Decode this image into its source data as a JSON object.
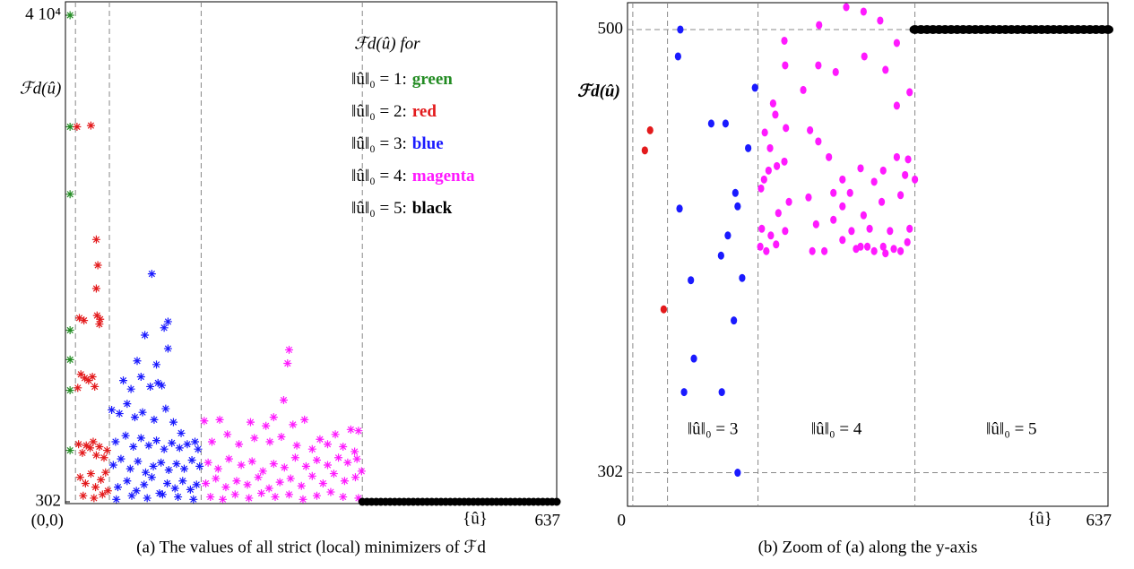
{
  "chart_data": [
    {
      "type": "scatter",
      "caption": "(a) The values of all strict (local) minimizers of ℱd",
      "ylabel": "ℱd(û)",
      "xlabel": "{û}",
      "xlim": [
        0,
        637
      ],
      "ylim": [
        302,
        40000
      ],
      "xticks": [
        {
          "value": 0,
          "label": "(0,0)"
        },
        637
      ],
      "yticks": [
        302,
        {
          "value": 40000,
          "label": "4 10⁴"
        }
      ],
      "grid": false,
      "vlines": [
        13,
        57,
        176,
        385
      ],
      "legend_title": "ℱd(û) for",
      "legend": "upper right",
      "series": [
        {
          "name": "green",
          "label": "‖û‖₀ = 1:",
          "color": "#228b22",
          "marker": "star",
          "x": [
            6,
            6,
            6,
            6,
            6,
            6,
            6
          ],
          "values": [
            40000,
            30900,
            25400,
            14300,
            11900,
            9400,
            4500
          ]
        },
        {
          "name": "red",
          "label": "‖û‖₀ = 2:",
          "color": "#e31a1c",
          "marker": "star",
          "x": [
            15,
            33,
            40,
            42,
            40,
            41,
            18,
            24,
            44,
            45,
            16,
            20,
            25,
            30,
            35,
            38,
            17,
            22,
            27,
            32,
            36,
            40,
            44,
            50,
            54,
            19,
            26,
            33,
            39,
            46,
            52,
            23,
            37,
            48,
            55
          ],
          "values": [
            30900,
            31000,
            21700,
            19600,
            17700,
            15500,
            15300,
            15100,
            14800,
            15200,
            9600,
            10700,
            10400,
            10200,
            10500,
            9700,
            5000,
            4300,
            4900,
            4700,
            5200,
            4100,
            4800,
            3900,
            4500,
            2300,
            1800,
            2600,
            1500,
            2100,
            2700,
            800,
            600,
            900,
            1200
          ]
        },
        {
          "name": "blue",
          "label": "‖û‖₀ = 3:",
          "color": "#1a1aff",
          "marker": "star",
          "x": [
            112,
            133,
            128,
            103,
            133,
            118,
            93,
            120,
            75,
            85,
            98,
            110,
            125,
            60,
            70,
            80,
            90,
            100,
            115,
            130,
            140,
            150,
            65,
            78,
            88,
            98,
            108,
            118,
            128,
            138,
            148,
            158,
            168,
            172,
            62,
            72,
            84,
            94,
            104,
            114,
            124,
            134,
            144,
            154,
            164,
            174,
            68,
            80,
            92,
            102,
            112,
            122,
            132,
            142,
            152,
            162,
            170,
            66,
            86,
            106,
            126,
            146,
            166
          ],
          "values": [
            18900,
            15000,
            14500,
            13900,
            12800,
            11500,
            11800,
            10000,
            10200,
            9500,
            10500,
            9700,
            9800,
            7800,
            7500,
            8300,
            7200,
            7600,
            7000,
            7900,
            6800,
            5900,
            5200,
            5700,
            4800,
            5500,
            4900,
            5300,
            4600,
            5100,
            4700,
            5000,
            5200,
            4600,
            3300,
            3800,
            3000,
            3600,
            2700,
            3200,
            3500,
            2900,
            3400,
            3000,
            3700,
            3200,
            1500,
            2000,
            1200,
            1700,
            2300,
            1000,
            1800,
            1400,
            2000,
            1300,
            1700,
            500,
            800,
            600,
            900,
            700,
            500
          ]
        },
        {
          "name": "magenta",
          "label": "‖û‖₀ = 4:",
          "color": "#ff1aff",
          "marker": "star",
          "x": [
            290,
            288,
            283,
            270,
            295,
            180,
            200,
            240,
            260,
            310,
            330,
            350,
            370,
            380,
            190,
            210,
            225,
            245,
            265,
            280,
            300,
            320,
            340,
            360,
            375,
            185,
            198,
            212,
            228,
            242,
            256,
            270,
            284,
            298,
            312,
            326,
            340,
            354,
            366,
            378,
            182,
            195,
            208,
            222,
            236,
            250,
            264,
            278,
            292,
            306,
            320,
            334,
            348,
            362,
            376,
            384,
            188,
            204,
            220,
            238,
            254,
            272,
            290,
            308,
            326,
            344,
            360,
            380
          ],
          "values": [
            12700,
            11600,
            8600,
            7200,
            6600,
            6900,
            7000,
            6800,
            6500,
            7000,
            5400,
            5800,
            6200,
            6100,
            5200,
            5800,
            5000,
            5500,
            5200,
            5600,
            4900,
            4600,
            5000,
            4800,
            4400,
            3500,
            3000,
            3800,
            3300,
            3600,
            2800,
            3400,
            3100,
            3900,
            3200,
            3700,
            3300,
            3900,
            3500,
            3800,
            1800,
            2200,
            1500,
            2000,
            1700,
            2300,
            1400,
            1900,
            2200,
            1600,
            2400,
            1800,
            2600,
            2000,
            2300,
            2800,
            700,
            500,
            900,
            600,
            1000,
            700,
            900,
            500,
            800,
            1100,
            700,
            600
          ]
        },
        {
          "name": "black",
          "label": "‖û‖₀ = 5:",
          "color": "#000000",
          "marker": "dot",
          "x": [
            385,
            391,
            397,
            403,
            409,
            415,
            421,
            427,
            433,
            439,
            445,
            451,
            457,
            463,
            469,
            475,
            481,
            487,
            493,
            499,
            505,
            511,
            517,
            523,
            529,
            535,
            541,
            547,
            553,
            559,
            565,
            571,
            577,
            583,
            589,
            595,
            601,
            607,
            613,
            619,
            625,
            631,
            637
          ],
          "values": [
            302,
            302,
            302,
            302,
            302,
            302,
            302,
            302,
            302,
            302,
            302,
            302,
            302,
            302,
            302,
            302,
            302,
            302,
            302,
            302,
            302,
            302,
            302,
            302,
            302,
            302,
            302,
            302,
            302,
            302,
            302,
            302,
            302,
            302,
            302,
            302,
            302,
            302,
            302,
            302,
            302,
            302,
            302
          ]
        }
      ]
    },
    {
      "type": "scatter",
      "caption": "(b) Zoom of (a) along the y-axis",
      "ylabel": "ℱd(û)",
      "xlabel": "{û}",
      "xlim": [
        0,
        637
      ],
      "ylim": [
        287,
        512
      ],
      "xticks": [
        0,
        637
      ],
      "yticks": [
        302,
        500
      ],
      "grid": true,
      "vlines": [
        7,
        53,
        173,
        381
      ],
      "annotations": [
        "‖û‖₀ = 3",
        "‖û‖₀ = 4",
        "‖û‖₀ = 5"
      ],
      "series": [
        {
          "color": "#e31a1c",
          "marker": "dot",
          "x": [
            23,
            30,
            48
          ],
          "values": [
            446,
            455,
            375
          ]
        },
        {
          "color": "#1a1aff",
          "marker": "dot",
          "x": [
            70,
            67,
            69,
            84,
            88,
            75,
            111,
            130,
            125,
            124,
            133,
            141,
            143,
            146,
            152,
            160,
            169,
            146
          ],
          "values": [
            500,
            488,
            420,
            388,
            353,
            338,
            458,
            458,
            338,
            399,
            408,
            370,
            427,
            421,
            389,
            447,
            474,
            302
          ]
        },
        {
          "color": "#ff1aff",
          "marker": "dot",
          "x": [
            290,
            313,
            335,
            254,
            208,
            253,
            276,
            314,
            209,
            342,
            357,
            357,
            374,
            233,
            193,
            196,
            210,
            182,
            242,
            253,
            189,
            198,
            208,
            187,
            181,
            177,
            267,
            309,
            285,
            339,
            357,
            372,
            273,
            295,
            327,
            368,
            214,
            240,
            285,
            313,
            337,
            362,
            381,
            200,
            178,
            190,
            209,
            176,
            184,
            197,
            250,
            273,
            297,
            321,
            348,
            374,
            245,
            261,
            285,
            303,
            309,
            318,
            327,
            339,
            353,
            362,
            371,
            342
          ],
          "values": [
            510,
            508,
            504,
            502,
            495,
            484,
            481,
            488,
            484,
            482,
            494,
            466,
            472,
            473,
            467,
            462,
            456,
            454,
            455,
            450,
            447,
            439,
            441,
            437,
            433,
            429,
            443,
            438,
            433,
            437,
            443,
            442,
            427,
            427,
            432,
            435,
            423,
            425,
            421,
            417,
            423,
            426,
            433,
            418,
            411,
            408,
            410,
            403,
            401,
            404,
            413,
            415,
            410,
            411,
            410,
            411,
            401,
            401,
            406,
            402,
            403,
            403,
            401,
            403,
            402,
            401,
            405,
            400
          ]
        },
        {
          "color": "#000000",
          "marker": "dot",
          "x": [
            381,
            389,
            397,
            405,
            413,
            421,
            429,
            437,
            445,
            453,
            461,
            469,
            477,
            485,
            493,
            501,
            509,
            517,
            525,
            533,
            541,
            549,
            557,
            565,
            573,
            581,
            589,
            597,
            605,
            613,
            621,
            629,
            637
          ],
          "values": [
            500,
            500,
            500,
            500,
            500,
            500,
            500,
            500,
            500,
            500,
            500,
            500,
            500,
            500,
            500,
            500,
            500,
            500,
            500,
            500,
            500,
            500,
            500,
            500,
            500,
            500,
            500,
            500,
            500,
            500,
            500,
            500,
            500
          ]
        }
      ]
    }
  ]
}
